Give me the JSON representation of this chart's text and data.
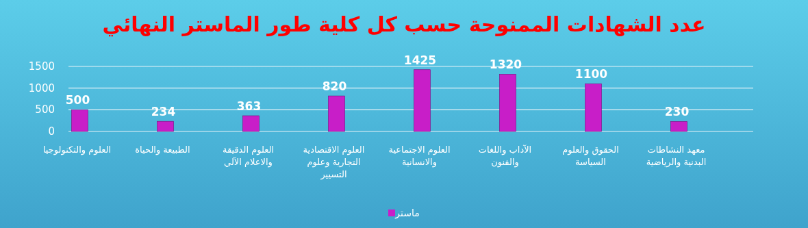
{
  "chart_data": {
    "type": "bar",
    "title": "عدد الشهادات الممنوحة حسب كل كلية طور الماستر النهائي",
    "categories": [
      "العلوم والتكنولوجيا",
      "الطبيعة والحياة",
      "العلوم الدقيقة والاعلام الآلي",
      "العلوم الاقتصادية التجارية وعلوم التسيير",
      "العلوم الاجتماعية والانسانية",
      "الآداب واللغات والفنون",
      "الحقوق والعلوم السياسة",
      "معهد النشاطات البدنية والرياضية"
    ],
    "series": [
      {
        "name": "ماستر",
        "color": "#c81ec8",
        "values": [
          500,
          234,
          363,
          820,
          1425,
          1320,
          1100,
          230
        ]
      }
    ],
    "ylim": [
      0,
      1500
    ],
    "yticks": [
      0,
      500,
      1000,
      1500
    ],
    "grid": "y",
    "legend": "bottom",
    "data_labels": true
  }
}
